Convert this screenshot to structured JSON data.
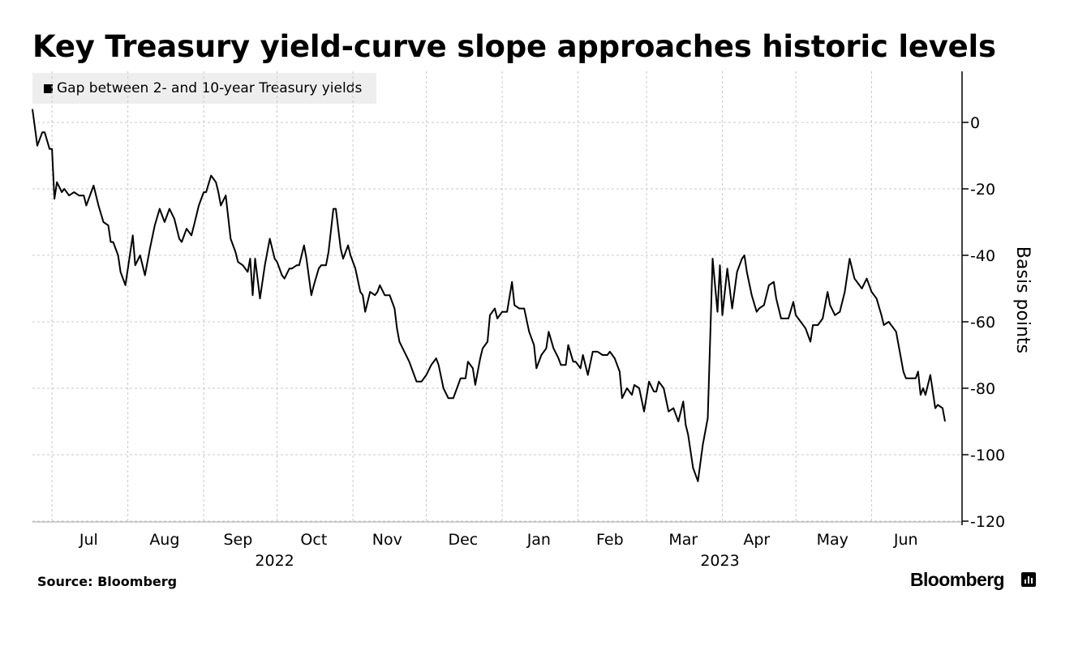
{
  "title": "Key Treasury yield-curve slope approaches historic levels",
  "legend_label": "Gap between 2- and 10-year Treasury yields",
  "source": "Source: Bloomberg",
  "brand": "Bloomberg",
  "brand_icon": "bar-chart-icon",
  "colors": {
    "line": "#000000",
    "grid": "#c8c8c8",
    "legend_bg": "#eeeeee"
  },
  "chart_data": {
    "type": "line",
    "title": "Key Treasury yield-curve slope approaches historic levels",
    "ylabel": "Basis points",
    "y_axis_position": "right",
    "ylim": [
      -120,
      15
    ],
    "y_ticks": [
      0,
      -20,
      -40,
      -60,
      -80,
      -100,
      -120
    ],
    "y_tick_labels": [
      "0",
      "-20",
      "-40",
      "-60",
      "-80",
      "-100",
      "-120"
    ],
    "grid": true,
    "legend_position": "top-left",
    "xlim": [
      "2022-06-23",
      "2023-06-30"
    ],
    "x_month_labels": [
      {
        "label": "Jul",
        "date": "2022-07-16"
      },
      {
        "label": "Aug",
        "date": "2022-08-16"
      },
      {
        "label": "Sep",
        "date": "2022-09-15"
      },
      {
        "label": "Oct",
        "date": "2022-10-16"
      },
      {
        "label": "Nov",
        "date": "2022-11-15"
      },
      {
        "label": "Dec",
        "date": "2022-12-16"
      },
      {
        "label": "Jan",
        "date": "2023-01-16"
      },
      {
        "label": "Feb",
        "date": "2023-02-14"
      },
      {
        "label": "Mar",
        "date": "2023-03-16"
      },
      {
        "label": "Apr",
        "date": "2023-04-15"
      },
      {
        "label": "May",
        "date": "2023-05-16"
      },
      {
        "label": "Jun",
        "date": "2023-06-15"
      }
    ],
    "x_year_labels": [
      {
        "label": "2022",
        "date": "2022-09-30"
      },
      {
        "label": "2023",
        "date": "2023-03-31"
      }
    ],
    "x_gridlines": [
      "2022-07-01",
      "2022-08-01",
      "2022-09-01",
      "2022-10-01",
      "2022-11-01",
      "2022-12-01",
      "2023-01-01",
      "2023-02-01",
      "2023-03-01",
      "2023-04-01",
      "2023-05-01",
      "2023-06-01"
    ],
    "series": [
      {
        "name": "Gap between 2- and 10-year Treasury yields",
        "points": [
          [
            "2022-06-23",
            4
          ],
          [
            "2022-06-25",
            -7
          ],
          [
            "2022-06-27",
            -3
          ],
          [
            "2022-06-28",
            -3
          ],
          [
            "2022-06-30",
            -8
          ],
          [
            "2022-07-01",
            -8
          ],
          [
            "2022-07-02",
            -23
          ],
          [
            "2022-07-03",
            -18
          ],
          [
            "2022-07-05",
            -21
          ],
          [
            "2022-07-06",
            -20
          ],
          [
            "2022-07-08",
            -22
          ],
          [
            "2022-07-10",
            -21
          ],
          [
            "2022-07-12",
            -22
          ],
          [
            "2022-07-14",
            -22
          ],
          [
            "2022-07-15",
            -25
          ],
          [
            "2022-07-17",
            -21
          ],
          [
            "2022-07-18",
            -19
          ],
          [
            "2022-07-20",
            -25
          ],
          [
            "2022-07-22",
            -30
          ],
          [
            "2022-07-24",
            -31
          ],
          [
            "2022-07-25",
            -36
          ],
          [
            "2022-07-26",
            -36
          ],
          [
            "2022-07-28",
            -40
          ],
          [
            "2022-07-29",
            -45
          ],
          [
            "2022-07-31",
            -49
          ],
          [
            "2022-08-03",
            -34
          ],
          [
            "2022-08-04",
            -43
          ],
          [
            "2022-08-06",
            -40
          ],
          [
            "2022-08-08",
            -46
          ],
          [
            "2022-08-10",
            -38
          ],
          [
            "2022-08-12",
            -31
          ],
          [
            "2022-08-14",
            -26
          ],
          [
            "2022-08-16",
            -30
          ],
          [
            "2022-08-18",
            -26
          ],
          [
            "2022-08-20",
            -29
          ],
          [
            "2022-08-22",
            -35
          ],
          [
            "2022-08-23",
            -36
          ],
          [
            "2022-08-25",
            -32
          ],
          [
            "2022-08-27",
            -34
          ],
          [
            "2022-08-28",
            -31
          ],
          [
            "2022-08-30",
            -25
          ],
          [
            "2022-09-01",
            -21
          ],
          [
            "2022-09-02",
            -21
          ],
          [
            "2022-09-04",
            -16
          ],
          [
            "2022-09-06",
            -18
          ],
          [
            "2022-09-07",
            -21
          ],
          [
            "2022-09-08",
            -25
          ],
          [
            "2022-09-10",
            -22
          ],
          [
            "2022-09-12",
            -35
          ],
          [
            "2022-09-14",
            -39
          ],
          [
            "2022-09-15",
            -42
          ],
          [
            "2022-09-17",
            -43
          ],
          [
            "2022-09-19",
            -45
          ],
          [
            "2022-09-20",
            -41
          ],
          [
            "2022-09-21",
            -52
          ],
          [
            "2022-09-22",
            -41
          ],
          [
            "2022-09-24",
            -53
          ],
          [
            "2022-09-26",
            -43
          ],
          [
            "2022-09-28",
            -35
          ],
          [
            "2022-09-30",
            -41
          ],
          [
            "2022-10-01",
            -42
          ],
          [
            "2022-10-03",
            -46
          ],
          [
            "2022-10-04",
            -47
          ],
          [
            "2022-10-06",
            -44
          ],
          [
            "2022-10-07",
            -44
          ],
          [
            "2022-10-09",
            -43
          ],
          [
            "2022-10-10",
            -43
          ],
          [
            "2022-10-12",
            -37
          ],
          [
            "2022-10-13",
            -41
          ],
          [
            "2022-10-15",
            -52
          ],
          [
            "2022-10-16",
            -49
          ],
          [
            "2022-10-18",
            -44
          ],
          [
            "2022-10-19",
            -43
          ],
          [
            "2022-10-21",
            -43
          ],
          [
            "2022-10-22",
            -39
          ],
          [
            "2022-10-24",
            -26
          ],
          [
            "2022-10-25",
            -26
          ],
          [
            "2022-10-27",
            -38
          ],
          [
            "2022-10-28",
            -41
          ],
          [
            "2022-10-30",
            -37
          ],
          [
            "2022-10-31",
            -40
          ],
          [
            "2022-11-02",
            -44
          ],
          [
            "2022-11-04",
            -51
          ],
          [
            "2022-11-05",
            -52
          ],
          [
            "2022-11-06",
            -57
          ],
          [
            "2022-11-08",
            -51
          ],
          [
            "2022-11-10",
            -52
          ],
          [
            "2022-11-11",
            -51
          ],
          [
            "2022-11-12",
            -49
          ],
          [
            "2022-11-14",
            -52
          ],
          [
            "2022-11-16",
            -52
          ],
          [
            "2022-11-18",
            -56
          ],
          [
            "2022-11-19",
            -62
          ],
          [
            "2022-11-20",
            -66
          ],
          [
            "2022-11-22",
            -69
          ],
          [
            "2022-11-24",
            -72
          ],
          [
            "2022-11-27",
            -78
          ],
          [
            "2022-11-29",
            -78
          ],
          [
            "2022-12-01",
            -76
          ],
          [
            "2022-12-03",
            -73
          ],
          [
            "2022-12-05",
            -71
          ],
          [
            "2022-12-06",
            -73
          ],
          [
            "2022-12-08",
            -80
          ],
          [
            "2022-12-10",
            -83
          ],
          [
            "2022-12-12",
            -83
          ],
          [
            "2022-12-13",
            -81
          ],
          [
            "2022-12-15",
            -77
          ],
          [
            "2022-12-17",
            -77
          ],
          [
            "2022-12-18",
            -72
          ],
          [
            "2022-12-20",
            -74
          ],
          [
            "2022-12-21",
            -79
          ],
          [
            "2022-12-23",
            -71
          ],
          [
            "2022-12-24",
            -68
          ],
          [
            "2022-12-26",
            -66
          ],
          [
            "2022-12-27",
            -58
          ],
          [
            "2022-12-29",
            -56
          ],
          [
            "2022-12-30",
            -59
          ],
          [
            "2023-01-01",
            -57
          ],
          [
            "2023-01-03",
            -57
          ],
          [
            "2023-01-05",
            -48
          ],
          [
            "2023-01-06",
            -55
          ],
          [
            "2023-01-08",
            -56
          ],
          [
            "2023-01-10",
            -56
          ],
          [
            "2023-01-12",
            -63
          ],
          [
            "2023-01-14",
            -67
          ],
          [
            "2023-01-15",
            -74
          ],
          [
            "2023-01-17",
            -70
          ],
          [
            "2023-01-19",
            -68
          ],
          [
            "2023-01-20",
            -63
          ],
          [
            "2023-01-22",
            -68
          ],
          [
            "2023-01-24",
            -71
          ],
          [
            "2023-01-25",
            -73
          ],
          [
            "2023-01-27",
            -73
          ],
          [
            "2023-01-28",
            -67
          ],
          [
            "2023-01-30",
            -72
          ],
          [
            "2023-01-31",
            -72
          ],
          [
            "2023-02-02",
            -74
          ],
          [
            "2023-02-03",
            -70
          ],
          [
            "2023-02-05",
            -76
          ],
          [
            "2023-02-07",
            -69
          ],
          [
            "2023-02-09",
            -69
          ],
          [
            "2023-02-11",
            -70
          ],
          [
            "2023-02-13",
            -70
          ],
          [
            "2023-02-14",
            -69
          ],
          [
            "2023-02-16",
            -71
          ],
          [
            "2023-02-18",
            -75
          ],
          [
            "2023-02-19",
            -83
          ],
          [
            "2023-02-21",
            -80
          ],
          [
            "2023-02-23",
            -82
          ],
          [
            "2023-02-24",
            -79
          ],
          [
            "2023-02-26",
            -80
          ],
          [
            "2023-02-28",
            -87
          ],
          [
            "2023-03-02",
            -78
          ],
          [
            "2023-03-04",
            -81
          ],
          [
            "2023-03-05",
            -81
          ],
          [
            "2023-03-06",
            -78
          ],
          [
            "2023-03-08",
            -80
          ],
          [
            "2023-03-10",
            -87
          ],
          [
            "2023-03-12",
            -86
          ],
          [
            "2023-03-14",
            -90
          ],
          [
            "2023-03-16",
            -84
          ],
          [
            "2023-03-17",
            -91
          ],
          [
            "2023-03-18",
            -94
          ],
          [
            "2023-03-20",
            -104
          ],
          [
            "2023-03-22",
            -108
          ],
          [
            "2023-03-24",
            -97
          ],
          [
            "2023-03-26",
            -89
          ],
          [
            "2023-03-28",
            -41
          ],
          [
            "2023-03-30",
            -57
          ],
          [
            "2023-03-31",
            -43
          ],
          [
            "2023-04-01",
            -58
          ],
          [
            "2023-04-03",
            -44
          ],
          [
            "2023-04-05",
            -56
          ],
          [
            "2023-04-07",
            -45
          ],
          [
            "2023-04-09",
            -41
          ],
          [
            "2023-04-10",
            -40
          ],
          [
            "2023-04-11",
            -45
          ],
          [
            "2023-04-13",
            -52
          ],
          [
            "2023-04-15",
            -57
          ],
          [
            "2023-04-16",
            -56
          ],
          [
            "2023-04-18",
            -55
          ],
          [
            "2023-04-20",
            -49
          ],
          [
            "2023-04-22",
            -48
          ],
          [
            "2023-04-23",
            -53
          ],
          [
            "2023-04-25",
            -59
          ],
          [
            "2023-04-27",
            -59
          ],
          [
            "2023-04-28",
            -59
          ],
          [
            "2023-04-30",
            -54
          ],
          [
            "2023-05-01",
            -58
          ],
          [
            "2023-05-03",
            -60
          ],
          [
            "2023-05-05",
            -62
          ],
          [
            "2023-05-07",
            -66
          ],
          [
            "2023-05-08",
            -61
          ],
          [
            "2023-05-10",
            -61
          ],
          [
            "2023-05-12",
            -59
          ],
          [
            "2023-05-14",
            -51
          ],
          [
            "2023-05-15",
            -55
          ],
          [
            "2023-05-17",
            -58
          ],
          [
            "2023-05-19",
            -57
          ],
          [
            "2023-05-21",
            -51
          ],
          [
            "2023-05-23",
            -41
          ],
          [
            "2023-05-25",
            -47
          ],
          [
            "2023-05-27",
            -49
          ],
          [
            "2023-05-28",
            -50
          ],
          [
            "2023-05-30",
            -47
          ],
          [
            "2023-06-01",
            -51
          ],
          [
            "2023-06-03",
            -53
          ],
          [
            "2023-06-05",
            -58
          ],
          [
            "2023-06-06",
            -61
          ],
          [
            "2023-06-08",
            -60
          ],
          [
            "2023-06-10",
            -62
          ],
          [
            "2023-06-11",
            -63
          ],
          [
            "2023-06-13",
            -71
          ],
          [
            "2023-06-14",
            -75
          ],
          [
            "2023-06-15",
            -77
          ],
          [
            "2023-06-17",
            -77
          ],
          [
            "2023-06-19",
            -77
          ],
          [
            "2023-06-20",
            -75
          ],
          [
            "2023-06-21",
            -82
          ],
          [
            "2023-06-22",
            -80
          ],
          [
            "2023-06-23",
            -82
          ],
          [
            "2023-06-25",
            -76
          ],
          [
            "2023-06-27",
            -86
          ],
          [
            "2023-06-28",
            -85
          ],
          [
            "2023-06-30",
            -86
          ],
          [
            "2023-07-01",
            -90
          ]
        ]
      }
    ]
  }
}
